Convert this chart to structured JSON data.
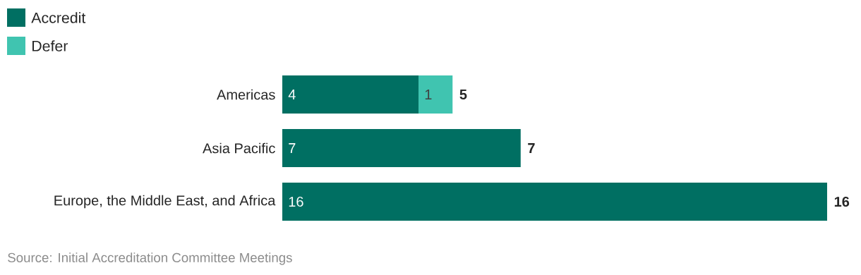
{
  "chart_data": {
    "type": "bar",
    "orientation": "horizontal",
    "stacked": true,
    "categories": [
      "Americas",
      "Asia Pacific",
      "Europe, the Middle East, and Africa"
    ],
    "series": [
      {
        "name": "Accredit",
        "color": "#006f62",
        "values": [
          4,
          7,
          16
        ]
      },
      {
        "name": "Defer",
        "color": "#40c4b0",
        "values": [
          1,
          null,
          null
        ]
      }
    ],
    "data_labels": true,
    "totals": [
      "5",
      "7",
      "16"
    ],
    "legend": "top left",
    "annotations": [
      "Source: Initial Accreditation Committee Meetings"
    ]
  }
}
